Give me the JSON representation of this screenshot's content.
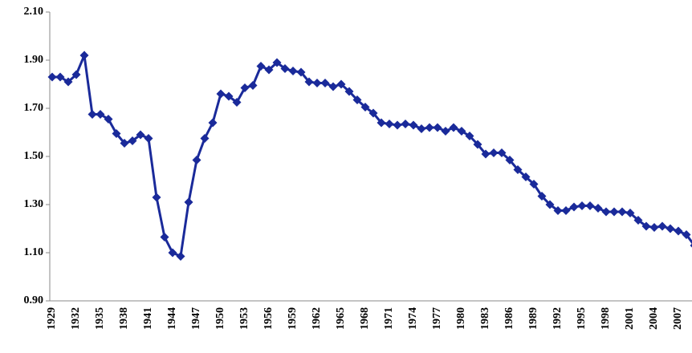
{
  "chart_data": {
    "type": "line",
    "color": "#1a2a9a",
    "categories": [
      "1929",
      null,
      null,
      "1932",
      null,
      null,
      "1935",
      null,
      null,
      "1938",
      null,
      null,
      "1941",
      null,
      null,
      "1944",
      null,
      null,
      "1947",
      null,
      null,
      "1950",
      null,
      null,
      "1953",
      null,
      null,
      "1956",
      null,
      null,
      "1959",
      null,
      null,
      "1962",
      null,
      null,
      "1965",
      null,
      null,
      "1968",
      null,
      null,
      "1971",
      null,
      null,
      "1974",
      null,
      null,
      "1977",
      null,
      null,
      "1980",
      null,
      null,
      "1983",
      null,
      null,
      "1986",
      null,
      null,
      "1989",
      null,
      null,
      "1992",
      null,
      null,
      "1995",
      null,
      null,
      "1998",
      null,
      null,
      "2001",
      null,
      null,
      "2004",
      null,
      null,
      "2007",
      null,
      null
    ],
    "values": [
      1.83,
      1.83,
      1.81,
      1.84,
      1.92,
      1.675,
      1.675,
      1.655,
      1.595,
      1.555,
      1.565,
      1.59,
      1.575,
      1.33,
      1.165,
      1.1,
      1.085,
      1.31,
      1.485,
      1.575,
      1.64,
      1.76,
      1.75,
      1.725,
      1.785,
      1.795,
      1.875,
      1.86,
      1.89,
      1.865,
      1.855,
      1.85,
      1.81,
      1.805,
      1.805,
      1.79,
      1.8,
      1.77,
      1.735,
      1.705,
      1.68,
      1.64,
      1.635,
      1.63,
      1.635,
      1.63,
      1.615,
      1.62,
      1.62,
      1.605,
      1.62,
      1.605,
      1.585,
      1.55,
      1.51,
      1.515,
      1.515,
      1.485,
      1.445,
      1.415,
      1.385,
      1.335,
      1.3,
      1.275,
      1.275,
      1.29,
      1.295,
      1.295,
      1.285,
      1.27,
      1.27,
      1.27,
      1.265,
      1.235,
      1.21,
      1.205,
      1.21,
      1.2,
      1.19,
      1.175,
      1.13
    ],
    "ylim": [
      0.9,
      2.1
    ],
    "yticks": [
      {
        "value": 0.9,
        "label": "0.90"
      },
      {
        "value": 1.1,
        "label": "1.10"
      },
      {
        "value": 1.3,
        "label": "1.30"
      },
      {
        "value": 1.5,
        "label": "1.50"
      },
      {
        "value": 1.7,
        "label": "1.70"
      },
      {
        "value": 1.9,
        "label": "1.90"
      },
      {
        "value": 2.1,
        "label": "2.10"
      }
    ]
  }
}
